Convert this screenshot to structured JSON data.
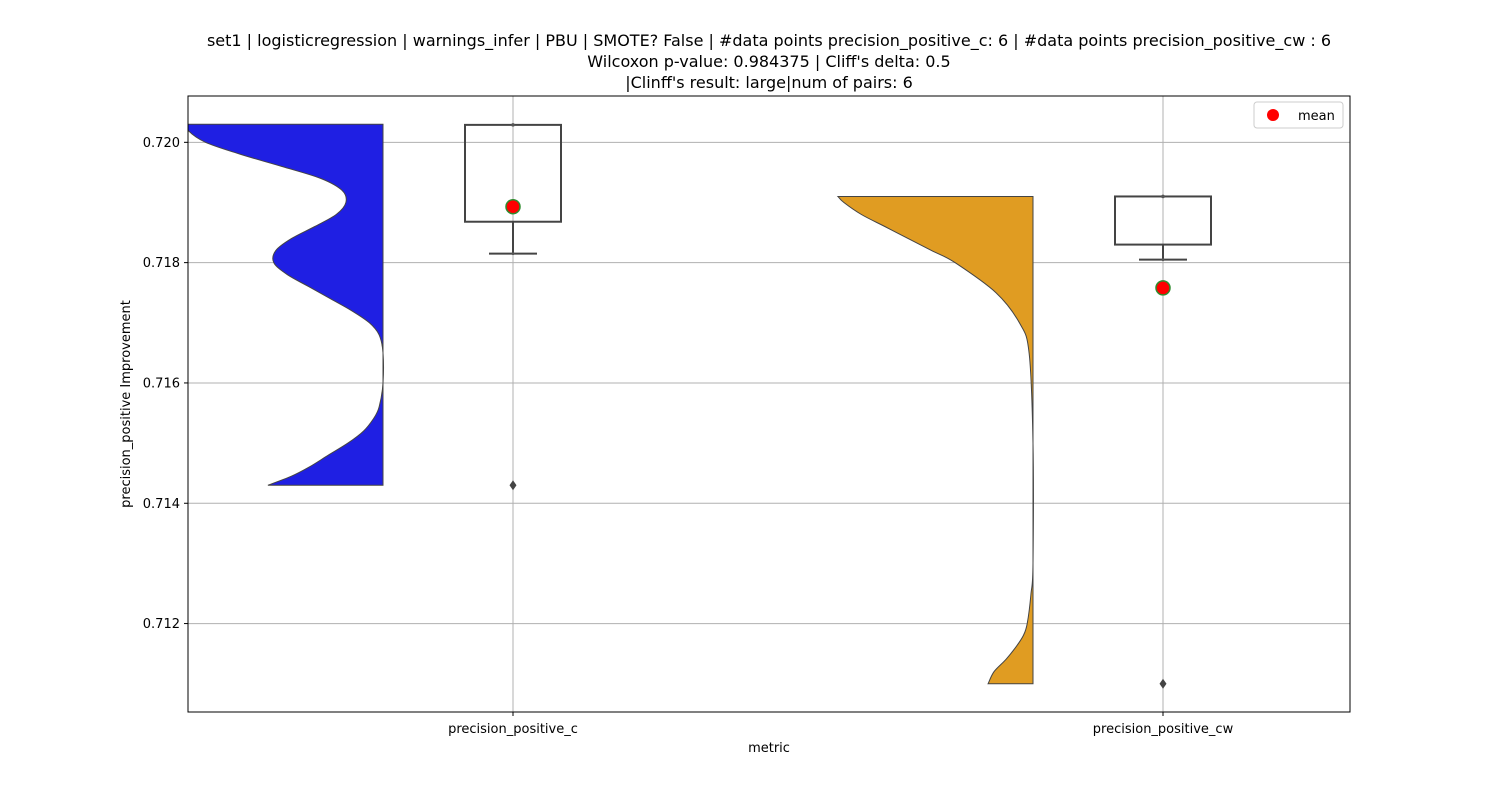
{
  "chart_data": {
    "type": "violin+box",
    "title_lines": [
      "set1 | logisticregression | warnings_infer | PBU | SMOTE? False | #data points precision_positive_c: 6 | #data points precision_positive_cw : 6",
      "Wilcoxon p-value: 0.984375 | Cliff's delta: 0.5",
      "|Clinff's result: large|num of pairs: 6"
    ],
    "xlabel": "metric",
    "ylabel": "precision_positive Improvement",
    "categories": [
      "precision_positive_c",
      "precision_positive_cw"
    ],
    "ylim": [
      0.71053,
      0.72077
    ],
    "yticks": [
      0.712,
      0.714,
      0.716,
      0.718,
      0.72
    ],
    "ytick_labels": [
      "0.712",
      "0.714",
      "0.716",
      "0.718",
      "0.720"
    ],
    "grid": true,
    "legend": {
      "position": "top-right",
      "entries": [
        {
          "label": "mean",
          "marker": "red-circle"
        }
      ]
    },
    "colors": {
      "violin_c": "#1f1fe3",
      "violin_cw": "#e09c22",
      "mean": "#ff0000",
      "mean_edge": "#2e8b2e",
      "box_edge": "#444444",
      "grid": "#b0b0b0"
    },
    "groups": [
      {
        "name": "precision_positive_c",
        "violin_color": "#1f1fe3",
        "violin_range": [
          0.7143,
          0.7203
        ],
        "violin_profile": [
          [
            0.7143,
            0.59
          ],
          [
            0.71445,
            0.47
          ],
          [
            0.7146,
            0.38
          ],
          [
            0.7148,
            0.28
          ],
          [
            0.715,
            0.18
          ],
          [
            0.7152,
            0.1
          ],
          [
            0.7154,
            0.05
          ],
          [
            0.7156,
            0.02
          ],
          [
            0.716,
            0.0
          ],
          [
            0.7165,
            0.0
          ],
          [
            0.7168,
            0.02
          ],
          [
            0.717,
            0.07
          ],
          [
            0.7172,
            0.16
          ],
          [
            0.7174,
            0.27
          ],
          [
            0.7176,
            0.38
          ],
          [
            0.7178,
            0.49
          ],
          [
            0.718,
            0.56
          ],
          [
            0.7182,
            0.55
          ],
          [
            0.7184,
            0.47
          ],
          [
            0.7186,
            0.35
          ],
          [
            0.7188,
            0.24
          ],
          [
            0.719,
            0.19
          ],
          [
            0.7192,
            0.21
          ],
          [
            0.7194,
            0.32
          ],
          [
            0.7196,
            0.52
          ],
          [
            0.7198,
            0.73
          ],
          [
            0.72,
            0.91
          ],
          [
            0.7202,
            1.0
          ],
          [
            0.7203,
            1.0
          ]
        ],
        "box": {
          "q1": 0.71868,
          "median": 0.72029,
          "q3": 0.72029,
          "whisker_low": 0.71815,
          "whisker_high": 0.72029
        },
        "outliers": [
          0.7143
        ],
        "mean": 0.71893
      },
      {
        "name": "precision_positive_cw",
        "violin_color": "#e09c22",
        "violin_range": [
          0.711,
          0.7191
        ],
        "violin_profile": [
          [
            0.711,
            0.23
          ],
          [
            0.7112,
            0.2
          ],
          [
            0.7114,
            0.14
          ],
          [
            0.7116,
            0.09
          ],
          [
            0.7118,
            0.05
          ],
          [
            0.712,
            0.03
          ],
          [
            0.7125,
            0.01
          ],
          [
            0.713,
            0.0
          ],
          [
            0.715,
            0.0
          ],
          [
            0.7165,
            0.02
          ],
          [
            0.717,
            0.07
          ],
          [
            0.7175,
            0.19
          ],
          [
            0.718,
            0.4
          ],
          [
            0.7182,
            0.52
          ],
          [
            0.7184,
            0.64
          ],
          [
            0.7186,
            0.76
          ],
          [
            0.7188,
            0.88
          ],
          [
            0.719,
            0.97
          ],
          [
            0.7191,
            1.0
          ]
        ],
        "box": {
          "q1": 0.7183,
          "median": 0.7191,
          "q3": 0.7191,
          "whisker_low": 0.71805,
          "whisker_high": 0.7191
        },
        "outliers": [
          0.711
        ],
        "mean": 0.71758
      }
    ]
  }
}
